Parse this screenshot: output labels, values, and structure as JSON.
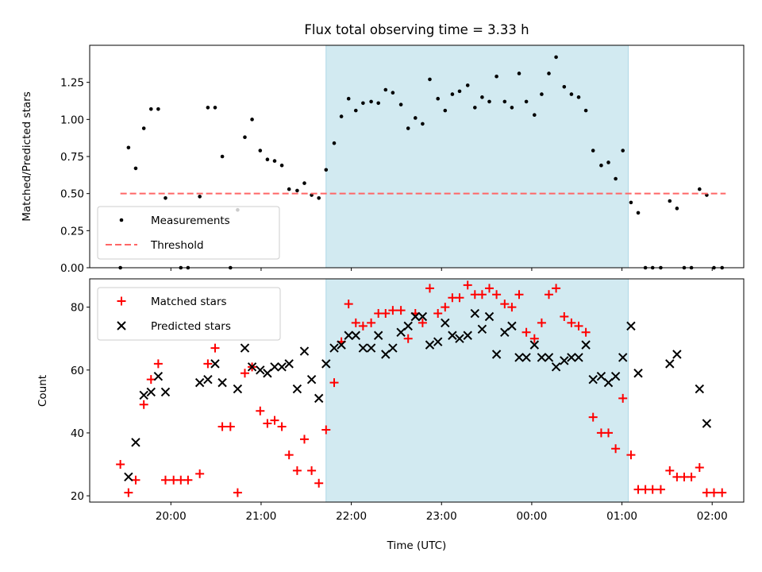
{
  "title": "Flux total observing time = 3.33 h",
  "colors": {
    "measurement": "#000000",
    "threshold": "#ff6666",
    "matched": "#ff0000",
    "predicted": "#000000",
    "observing_span": "#add8e6"
  },
  "chart_data": [
    {
      "type": "scatter",
      "ylabel": "Matched/Predicted stars",
      "xlabel": "",
      "x_axis": "time (UTC), decimal hours past midnight of first day",
      "xlim": [
        19.1,
        26.35
      ],
      "ylim": [
        0.0,
        1.5
      ],
      "yticks": [
        0.0,
        0.25,
        0.5,
        0.75,
        1.0,
        1.25
      ],
      "ytick_labels": [
        "0.00",
        "0.25",
        "0.50",
        "0.75",
        "1.00",
        "1.25"
      ],
      "xticks": [
        20,
        21,
        22,
        23,
        24,
        25,
        26
      ],
      "xtick_labels": [
        "",
        "",
        "",
        "",
        "",
        "",
        ""
      ],
      "shaded_span": [
        21.72,
        25.07
      ],
      "legend": {
        "position": "lower-left",
        "entries": [
          "Measurements",
          "Threshold"
        ]
      },
      "series": [
        {
          "name": "Measurements",
          "marker": "dot",
          "points": [
            [
              19.44,
              0.0
            ],
            [
              19.53,
              0.81
            ],
            [
              19.61,
              0.67
            ],
            [
              19.7,
              0.94
            ],
            [
              19.78,
              1.07
            ],
            [
              19.86,
              1.07
            ],
            [
              19.94,
              0.47
            ],
            [
              20.11,
              0.0
            ],
            [
              20.19,
              0.0
            ],
            [
              20.32,
              0.48
            ],
            [
              20.41,
              1.08
            ],
            [
              20.49,
              1.08
            ],
            [
              20.57,
              0.75
            ],
            [
              20.66,
              0.0
            ],
            [
              20.74,
              0.39
            ],
            [
              20.82,
              0.88
            ],
            [
              20.9,
              1.0
            ],
            [
              20.99,
              0.79
            ],
            [
              21.07,
              0.73
            ],
            [
              21.15,
              0.72
            ],
            [
              21.23,
              0.69
            ],
            [
              21.31,
              0.53
            ],
            [
              21.4,
              0.52
            ],
            [
              21.48,
              0.57
            ],
            [
              21.56,
              0.49
            ],
            [
              21.64,
              0.47
            ],
            [
              21.72,
              0.66
            ],
            [
              21.81,
              0.84
            ],
            [
              21.89,
              1.02
            ],
            [
              21.97,
              1.14
            ],
            [
              22.05,
              1.06
            ],
            [
              22.13,
              1.11
            ],
            [
              22.22,
              1.12
            ],
            [
              22.3,
              1.11
            ],
            [
              22.38,
              1.2
            ],
            [
              22.46,
              1.18
            ],
            [
              22.55,
              1.1
            ],
            [
              22.63,
              0.94
            ],
            [
              22.71,
              1.01
            ],
            [
              22.79,
              0.97
            ],
            [
              22.87,
              1.27
            ],
            [
              22.96,
              1.14
            ],
            [
              23.04,
              1.06
            ],
            [
              23.12,
              1.17
            ],
            [
              23.2,
              1.19
            ],
            [
              23.29,
              1.23
            ],
            [
              23.37,
              1.08
            ],
            [
              23.45,
              1.15
            ],
            [
              23.53,
              1.12
            ],
            [
              23.61,
              1.29
            ],
            [
              23.7,
              1.12
            ],
            [
              23.78,
              1.08
            ],
            [
              23.86,
              1.31
            ],
            [
              23.94,
              1.12
            ],
            [
              24.03,
              1.03
            ],
            [
              24.11,
              1.17
            ],
            [
              24.19,
              1.31
            ],
            [
              24.27,
              1.42
            ],
            [
              24.36,
              1.22
            ],
            [
              24.44,
              1.17
            ],
            [
              24.52,
              1.15
            ],
            [
              24.6,
              1.06
            ],
            [
              24.68,
              0.79
            ],
            [
              24.77,
              0.69
            ],
            [
              24.85,
              0.71
            ],
            [
              24.93,
              0.6
            ],
            [
              25.01,
              0.79
            ],
            [
              25.1,
              0.44
            ],
            [
              25.18,
              0.37
            ],
            [
              25.26,
              0.0
            ],
            [
              25.34,
              0.0
            ],
            [
              25.43,
              0.0
            ],
            [
              25.53,
              0.45
            ],
            [
              25.61,
              0.4
            ],
            [
              25.69,
              0.0
            ],
            [
              25.77,
              0.0
            ],
            [
              25.86,
              0.53
            ],
            [
              25.94,
              0.49
            ],
            [
              26.02,
              0.0
            ],
            [
              26.11,
              0.0
            ]
          ]
        },
        {
          "name": "Threshold",
          "marker": "dashed-line",
          "points": [
            [
              19.44,
              0.5
            ],
            [
              26.15,
              0.5
            ]
          ]
        }
      ]
    },
    {
      "type": "scatter",
      "ylabel": "Count",
      "xlabel": "Time (UTC)",
      "x_axis": "time (UTC), decimal hours past midnight of first day",
      "xlim": [
        19.1,
        26.35
      ],
      "ylim": [
        18,
        89
      ],
      "yticks": [
        20,
        40,
        60,
        80
      ],
      "ytick_labels": [
        "20",
        "40",
        "60",
        "80"
      ],
      "xticks": [
        20,
        21,
        22,
        23,
        24,
        25,
        26
      ],
      "xtick_labels": [
        "20:00",
        "21:00",
        "22:00",
        "23:00",
        "00:00",
        "01:00",
        "02:00"
      ],
      "shaded_span": [
        21.72,
        25.07
      ],
      "legend": {
        "position": "upper-left",
        "entries": [
          "Matched stars",
          "Predicted stars"
        ]
      },
      "series": [
        {
          "name": "Matched stars",
          "marker": "plus",
          "points": [
            [
              19.44,
              30
            ],
            [
              19.53,
              21
            ],
            [
              19.61,
              25
            ],
            [
              19.7,
              49
            ],
            [
              19.78,
              57
            ],
            [
              19.86,
              62
            ],
            [
              19.94,
              25
            ],
            [
              20.03,
              25
            ],
            [
              20.11,
              25
            ],
            [
              20.19,
              25
            ],
            [
              20.32,
              27
            ],
            [
              20.41,
              62
            ],
            [
              20.49,
              67
            ],
            [
              20.57,
              42
            ],
            [
              20.66,
              42
            ],
            [
              20.74,
              21
            ],
            [
              20.82,
              59
            ],
            [
              20.9,
              61
            ],
            [
              20.99,
              47
            ],
            [
              21.07,
              43
            ],
            [
              21.15,
              44
            ],
            [
              21.23,
              42
            ],
            [
              21.31,
              33
            ],
            [
              21.4,
              28
            ],
            [
              21.48,
              38
            ],
            [
              21.56,
              28
            ],
            [
              21.64,
              24
            ],
            [
              21.72,
              41
            ],
            [
              21.81,
              56
            ],
            [
              21.89,
              69
            ],
            [
              21.97,
              81
            ],
            [
              22.05,
              75
            ],
            [
              22.13,
              74
            ],
            [
              22.22,
              75
            ],
            [
              22.3,
              78
            ],
            [
              22.38,
              78
            ],
            [
              22.46,
              79
            ],
            [
              22.55,
              79
            ],
            [
              22.63,
              70
            ],
            [
              22.71,
              78
            ],
            [
              22.79,
              75
            ],
            [
              22.87,
              86
            ],
            [
              22.96,
              78
            ],
            [
              23.04,
              80
            ],
            [
              23.12,
              83
            ],
            [
              23.2,
              83
            ],
            [
              23.29,
              87
            ],
            [
              23.37,
              84
            ],
            [
              23.45,
              84
            ],
            [
              23.53,
              86
            ],
            [
              23.61,
              84
            ],
            [
              23.7,
              81
            ],
            [
              23.78,
              80
            ],
            [
              23.86,
              84
            ],
            [
              23.94,
              72
            ],
            [
              24.03,
              70
            ],
            [
              24.11,
              75
            ],
            [
              24.19,
              84
            ],
            [
              24.27,
              86
            ],
            [
              24.36,
              77
            ],
            [
              24.44,
              75
            ],
            [
              24.52,
              74
            ],
            [
              24.6,
              72
            ],
            [
              24.68,
              45
            ],
            [
              24.77,
              40
            ],
            [
              24.85,
              40
            ],
            [
              24.93,
              35
            ],
            [
              25.01,
              51
            ],
            [
              25.1,
              33
            ],
            [
              25.18,
              22
            ],
            [
              25.26,
              22
            ],
            [
              25.34,
              22
            ],
            [
              25.43,
              22
            ],
            [
              25.53,
              28
            ],
            [
              25.61,
              26
            ],
            [
              25.69,
              26
            ],
            [
              25.77,
              26
            ],
            [
              25.86,
              29
            ],
            [
              25.94,
              21
            ],
            [
              26.02,
              21
            ],
            [
              26.11,
              21
            ]
          ]
        },
        {
          "name": "Predicted stars",
          "marker": "cross",
          "points": [
            [
              19.53,
              26
            ],
            [
              19.61,
              37
            ],
            [
              19.7,
              52
            ],
            [
              19.78,
              53
            ],
            [
              19.86,
              58
            ],
            [
              19.94,
              53
            ],
            [
              20.32,
              56
            ],
            [
              20.41,
              57
            ],
            [
              20.49,
              62
            ],
            [
              20.57,
              56
            ],
            [
              20.74,
              54
            ],
            [
              20.82,
              67
            ],
            [
              20.9,
              61
            ],
            [
              20.99,
              60
            ],
            [
              21.07,
              59
            ],
            [
              21.15,
              61
            ],
            [
              21.23,
              61
            ],
            [
              21.31,
              62
            ],
            [
              21.4,
              54
            ],
            [
              21.48,
              66
            ],
            [
              21.56,
              57
            ],
            [
              21.64,
              51
            ],
            [
              21.72,
              62
            ],
            [
              21.81,
              67
            ],
            [
              21.89,
              68
            ],
            [
              21.97,
              71
            ],
            [
              22.05,
              71
            ],
            [
              22.13,
              67
            ],
            [
              22.22,
              67
            ],
            [
              22.3,
              71
            ],
            [
              22.38,
              65
            ],
            [
              22.46,
              67
            ],
            [
              22.55,
              72
            ],
            [
              22.63,
              74
            ],
            [
              22.71,
              77
            ],
            [
              22.79,
              77
            ],
            [
              22.87,
              68
            ],
            [
              22.96,
              69
            ],
            [
              23.04,
              75
            ],
            [
              23.12,
              71
            ],
            [
              23.2,
              70
            ],
            [
              23.29,
              71
            ],
            [
              23.37,
              78
            ],
            [
              23.45,
              73
            ],
            [
              23.53,
              77
            ],
            [
              23.61,
              65
            ],
            [
              23.7,
              72
            ],
            [
              23.78,
              74
            ],
            [
              23.86,
              64
            ],
            [
              23.94,
              64
            ],
            [
              24.03,
              68
            ],
            [
              24.11,
              64
            ],
            [
              24.19,
              64
            ],
            [
              24.27,
              61
            ],
            [
              24.36,
              63
            ],
            [
              24.44,
              64
            ],
            [
              24.52,
              64
            ],
            [
              24.6,
              68
            ],
            [
              24.68,
              57
            ],
            [
              24.77,
              58
            ],
            [
              24.85,
              56
            ],
            [
              24.93,
              58
            ],
            [
              25.01,
              64
            ],
            [
              25.1,
              74
            ],
            [
              25.18,
              59
            ],
            [
              25.53,
              62
            ],
            [
              25.61,
              65
            ],
            [
              25.86,
              54
            ],
            [
              25.94,
              43
            ]
          ]
        }
      ]
    }
  ]
}
